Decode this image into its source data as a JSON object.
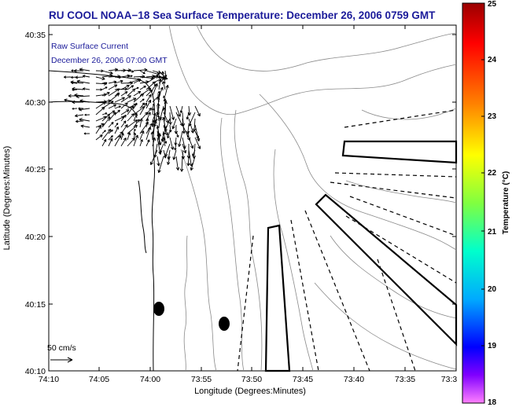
{
  "title": "RU COOL  NOAA−18  Sea Surface Temperature:  December 26, 2006 0759 GMT",
  "legend": {
    "line1": "Raw Surface Current",
    "line2": "December 26, 2006 07:00 GMT",
    "scale_label": "50 cm/s"
  },
  "x_axis": {
    "label": "Longitude (Degrees:Minutes)",
    "ticks": [
      "74:10",
      "74:05",
      "74:00",
      "73:55",
      "73:50",
      "73:45",
      "73:40",
      "73:35",
      "73:3"
    ]
  },
  "y_axis": {
    "label": "Latitude (Degrees:Minutes)",
    "ticks": [
      "40:35",
      "40:30",
      "40:25",
      "40:20",
      "40:15",
      "40:10"
    ]
  },
  "colorbar": {
    "label": "Temperature (°C)",
    "ticks": [
      "25",
      "24",
      "23",
      "22",
      "21",
      "20",
      "19",
      "18"
    ],
    "colors": [
      "#b00000",
      "#ff0000",
      "#ff8000",
      "#ffff00",
      "#00ff80",
      "#00ffff",
      "#0000ff",
      "#ff00ff"
    ]
  },
  "colors": {
    "title": "#1b1b9a",
    "legend_text": "#1b1b9a",
    "coast": "#000000",
    "contour": "#8a8a8a"
  }
}
